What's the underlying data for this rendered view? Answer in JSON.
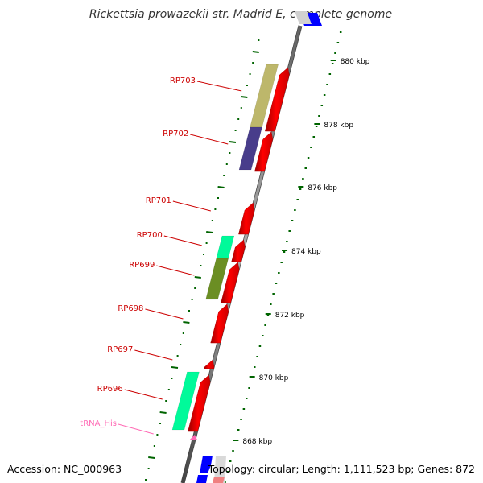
{
  "title": "Rickettsia prowazekii str. Madrid E, complete genome",
  "footer": {
    "accession": "Accession: NC_000963",
    "summary": "Topology: circular; Length: 1,111,523 bp; Genes: 872"
  },
  "scale_ticks": [
    {
      "label": "880 kbp"
    },
    {
      "label": "878 kbp"
    },
    {
      "label": "876 kbp"
    },
    {
      "label": "874 kbp"
    },
    {
      "label": "872 kbp"
    },
    {
      "label": "870 kbp"
    },
    {
      "label": "868 kbp"
    }
  ],
  "genes": [
    {
      "label": "RP703",
      "strand": "+",
      "color": "#ff0000",
      "cog_color": "#bdb76b"
    },
    {
      "label": "RP702",
      "strand": "+",
      "color": "#ff0000",
      "cog_color": "#483d8b"
    },
    {
      "label": "RP701",
      "strand": "+",
      "color": "#ff0000",
      "cog_color": null
    },
    {
      "label": "RP700",
      "strand": "+",
      "color": "#ff0000",
      "cog_color": "#00fa9a"
    },
    {
      "label": "RP699",
      "strand": "+",
      "color": "#ff0000",
      "cog_color": "#6b8e23"
    },
    {
      "label": "RP698",
      "strand": "+",
      "color": "#ff0000",
      "cog_color": null
    },
    {
      "label": "RP697",
      "strand": "+",
      "color": "#ff0000",
      "cog_color": null
    },
    {
      "label": "RP696",
      "strand": "+",
      "color": "#ff0000",
      "cog_color": "#00fa9a"
    },
    {
      "label": "tRNA_His",
      "strand": "+",
      "color": "#ff69b4",
      "cog_color": null
    }
  ],
  "colors": {
    "backbone": "#808080",
    "cds_forward": "#ff0000",
    "trna": "#ff69b4",
    "label_cds": "#cc0000",
    "label_trna": "#ff69b4",
    "gc_ticks": "#006400",
    "edge_blue": "#0000ff"
  }
}
